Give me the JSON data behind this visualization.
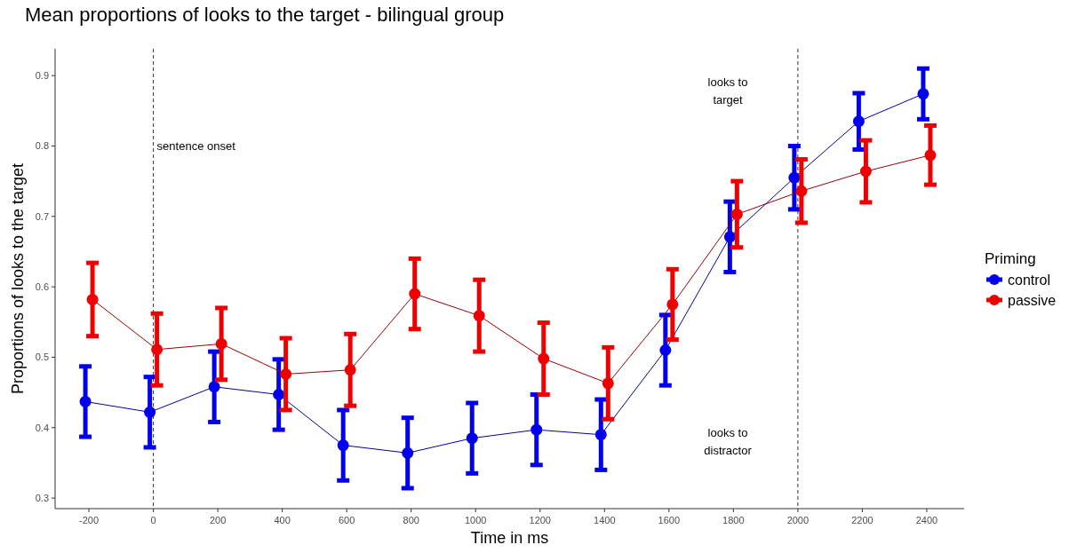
{
  "chart_data": {
    "type": "line",
    "title": "Mean proportions of looks to the target - bilingual group",
    "xlabel": "Time in ms",
    "ylabel": "Proportions of looks to the target",
    "legend_title": "Priming",
    "x": [
      -200,
      0,
      200,
      400,
      600,
      800,
      1000,
      1200,
      1400,
      1600,
      1800,
      2000,
      2200,
      2400
    ],
    "series": [
      {
        "name": "control",
        "color": "#0000ee",
        "values": [
          0.437,
          0.422,
          0.458,
          0.447,
          0.375,
          0.364,
          0.385,
          0.397,
          0.39,
          0.51,
          0.671,
          0.755,
          0.835,
          0.874
        ],
        "errors": [
          0.05,
          0.05,
          0.05,
          0.05,
          0.05,
          0.05,
          0.05,
          0.05,
          0.05,
          0.05,
          0.05,
          0.045,
          0.04,
          0.036
        ]
      },
      {
        "name": "passive",
        "color": "#ee0000",
        "values": [
          0.582,
          0.511,
          0.519,
          0.476,
          0.482,
          0.59,
          0.559,
          0.498,
          0.463,
          0.575,
          0.703,
          0.736,
          0.764,
          0.787
        ],
        "errors": [
          0.052,
          0.051,
          0.051,
          0.051,
          0.051,
          0.05,
          0.051,
          0.051,
          0.051,
          0.05,
          0.047,
          0.045,
          0.044,
          0.042
        ]
      }
    ],
    "xlim": [
      -305,
      2516
    ],
    "xticks": [
      -200,
      0,
      200,
      400,
      600,
      800,
      1000,
      1200,
      1400,
      1600,
      1800,
      2000,
      2200,
      2400
    ],
    "ylim": [
      0.285,
      0.938
    ],
    "yticks": [
      0.3,
      0.4,
      0.5,
      0.6,
      0.7,
      0.8,
      0.9
    ],
    "ref_lines": [
      {
        "axis": "x",
        "value": 0,
        "label": "sentence onset",
        "line_style": "dashed"
      },
      {
        "axis": "x",
        "value": 2000,
        "line_style": "dashed"
      }
    ],
    "annotations": [
      "looks to target",
      "looks to distractor"
    ],
    "marker": "circle",
    "line_style": "solid",
    "grid": false,
    "legend": "right"
  }
}
